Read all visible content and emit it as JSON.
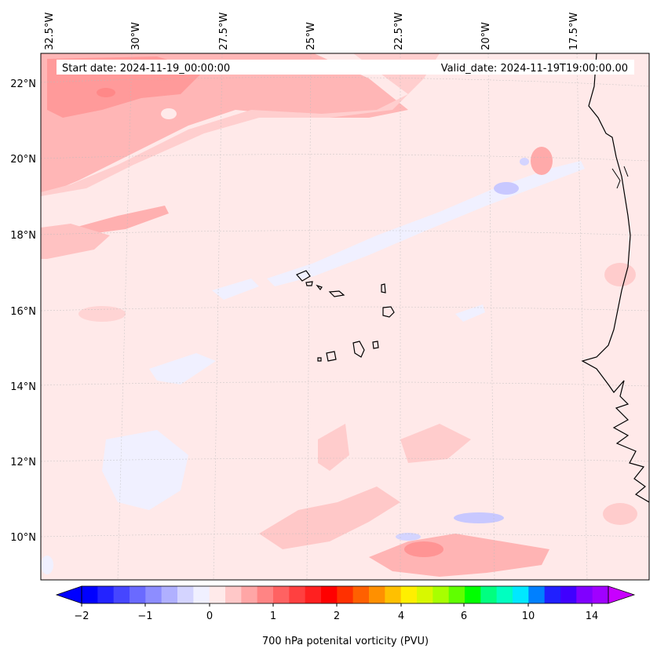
{
  "header": {
    "start_date": "Start date: 2024-11-19_00:00:00",
    "valid_date": "Valid_date: 2024-11-19T19:00:00.00"
  },
  "lon_labels": [
    "32.5°W",
    "30°W",
    "27.5°W",
    "25°W",
    "22.5°W",
    "20°W",
    "17.5°W"
  ],
  "lat_labels": [
    "22°N",
    "20°N",
    "18°N",
    "16°N",
    "14°N",
    "12°N",
    "10°N"
  ],
  "colorbar": {
    "title": "700 hPa potenital vorticity (PVU)",
    "tick_labels": [
      "−2",
      "−1",
      "0",
      "1",
      "2",
      "4",
      "6",
      "10",
      "14"
    ],
    "colors": [
      "#0000ff",
      "#2323ff",
      "#4646ff",
      "#6a6aff",
      "#8d8dff",
      "#b0b0ff",
      "#d4d4ff",
      "#f0f0ff",
      "#ffeaea",
      "#ffc8c8",
      "#ffa6a6",
      "#ff8484",
      "#ff6262",
      "#ff4040",
      "#ff2020",
      "#ff0000",
      "#ff3000",
      "#ff6000",
      "#ff9000",
      "#ffc000",
      "#ffef00",
      "#d8f800",
      "#a8ff00",
      "#60ff00",
      "#00ff00",
      "#00ff80",
      "#00ffc0",
      "#00e8ff",
      "#0080ff",
      "#2020ff",
      "#4000ff",
      "#8000ff",
      "#a000ff"
    ],
    "under_color": "#0000ff",
    "over_color": "#c800ff"
  }
}
